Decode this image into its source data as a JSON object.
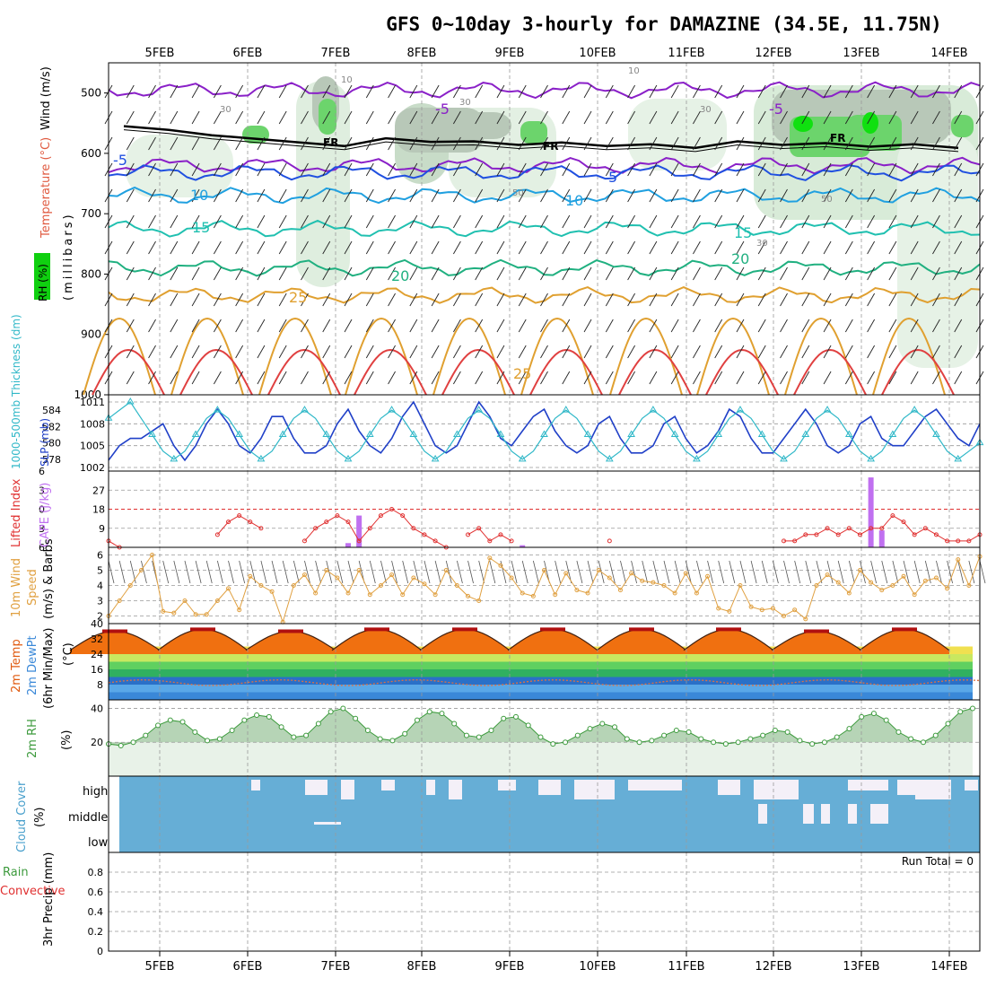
{
  "title": "GFS 0~10day 3-hourly for DAMAZINE (34.5E, 11.75N)",
  "dates": [
    "5FEB",
    "6FEB",
    "7FEB",
    "8FEB",
    "9FEB",
    "10FEB",
    "11FEB",
    "12FEB",
    "13FEB",
    "14FEB"
  ],
  "panel_labels": {
    "upper": {
      "wind": "Wind (m/s)",
      "temp": "Temperature (°C)",
      "rh": "RH (%)",
      "unit": "(millibars)"
    },
    "slp": {
      "thick": "1000-500mb Thickness (dm)",
      "slp": "SLP (mb)"
    },
    "cape": {
      "li": "Lifted Index",
      "cape": "CAPE (J/kg)"
    },
    "wind10": {
      "a": "10m Wind",
      "b": "Speed",
      "c": "(m/s) & Barbs"
    },
    "temp2m": {
      "a": "2m Temp",
      "b": "2m DewPt",
      "c": "(6hr Min/Max)",
      "unit": "(°C)"
    },
    "rh2m": {
      "a": "2m RH",
      "unit": "(%)"
    },
    "cloud": {
      "a": "Cloud Cover",
      "unit": "(%)",
      "high": "high",
      "middle": "middle",
      "low": "low"
    },
    "precip": {
      "a": "Total / Rain",
      "b": "Convective",
      "c": "3hr Precip (mm)",
      "run_total": "Run Total = 0"
    }
  },
  "contour_labels": {
    "fr": [
      "FR",
      "FR",
      "FR"
    ],
    "temps": [
      "-5",
      "-5",
      "-5",
      "5",
      "10",
      "10",
      "15",
      "15",
      "20",
      "20",
      "25",
      "25"
    ],
    "rh": [
      "10",
      "10",
      "30",
      "30",
      "30",
      "50",
      "50",
      "30"
    ]
  },
  "colors": {
    "dewpt": "#3a88d8",
    "temp": "#e05a10",
    "rh": "#3c9a3c",
    "cloud": "#66aed6",
    "cape": "#c070f0",
    "li": "#e03030",
    "slp": "#2040c8",
    "thick": "#30b8c8",
    "windspeed": "#e0a040"
  },
  "chart_data": [
    {
      "type": "contour",
      "name": "upper-air cross section",
      "yaxis": "pressure (mb)",
      "ylim": [
        1000,
        450
      ],
      "yticks": [
        500,
        600,
        700,
        800,
        900,
        1000
      ],
      "freezing_level_mb": [
        555,
        570,
        582,
        575,
        580,
        582,
        585,
        580,
        583,
        585
      ],
      "isotherms": [
        {
          "label": "-5",
          "mb": 495
        },
        {
          "label": "-5",
          "mb": 620
        },
        {
          "label": "5",
          "mb": 632
        },
        {
          "label": "10",
          "mb": 670
        },
        {
          "label": "15",
          "mb": 725
        },
        {
          "label": "20",
          "mb": 790
        },
        {
          "label": "25",
          "mb": 835
        }
      ]
    },
    {
      "type": "line",
      "name": "SLP and thickness",
      "series": [
        {
          "name": "SLP (mb)",
          "ylim": [
            1002,
            1011
          ],
          "yticks": [
            1002,
            1005,
            1008,
            1011
          ],
          "values": [
            1003,
            1005,
            1006,
            1006,
            1007,
            1008,
            1005,
            1003,
            1005,
            1008,
            1010,
            1008,
            1005,
            1004,
            1006,
            1009,
            1009,
            1006,
            1004,
            1004,
            1005,
            1008,
            1010,
            1007,
            1005,
            1004,
            1006,
            1009,
            1011,
            1008,
            1005,
            1004,
            1005,
            1008,
            1011,
            1009,
            1006,
            1005,
            1007,
            1009,
            1010,
            1007,
            1005,
            1004,
            1005,
            1008,
            1009,
            1006,
            1004,
            1004,
            1005,
            1008,
            1009,
            1006,
            1004,
            1005,
            1007,
            1010,
            1009,
            1006,
            1004,
            1004,
            1006,
            1008,
            1010,
            1008,
            1005,
            1004,
            1005,
            1008,
            1009,
            1006,
            1005,
            1005,
            1007,
            1009,
            1010,
            1008,
            1006,
            1005,
            1008
          ]
        },
        {
          "name": "Thickness (dm)",
          "ylim": [
            577,
            585
          ],
          "yticks": [
            578,
            580,
            582,
            584
          ],
          "values": [
            583,
            584,
            585,
            583,
            581,
            579,
            578,
            579,
            581,
            583,
            584,
            583,
            581,
            579,
            578,
            579,
            581,
            583,
            584,
            583,
            581,
            579,
            578,
            579,
            581,
            583,
            584,
            583,
            581,
            579,
            578,
            579,
            581,
            583,
            584,
            583,
            581,
            579,
            578,
            579,
            581,
            583,
            584,
            583,
            581,
            579,
            578,
            579,
            581,
            583,
            584,
            583,
            581,
            579,
            578,
            579,
            581,
            583,
            584,
            583,
            581,
            579,
            578,
            579,
            581,
            583,
            584,
            583,
            581,
            579,
            578,
            579,
            581,
            583,
            584,
            583,
            581,
            579,
            578,
            579,
            580
          ]
        }
      ]
    },
    {
      "type": "line",
      "name": "CAPE and Lifted Index",
      "ylim_li": [
        6,
        -6
      ],
      "yticks_li": [
        6,
        3,
        0,
        -3,
        -6
      ],
      "yticks_cape": [
        9,
        18,
        27
      ],
      "li_values": [
        5,
        6,
        null,
        null,
        null,
        null,
        null,
        null,
        null,
        null,
        4,
        2,
        1,
        2,
        3,
        null,
        null,
        null,
        5,
        3,
        2,
        1,
        2,
        5,
        3,
        1,
        0,
        1,
        3,
        4,
        5,
        6,
        null,
        4,
        3,
        5,
        4,
        5,
        null,
        null,
        null,
        null,
        null,
        null,
        null,
        null,
        5,
        null,
        null,
        null,
        null,
        null,
        null,
        null,
        null,
        null,
        null,
        null,
        null,
        null,
        null,
        null,
        5,
        5,
        4,
        4,
        3,
        4,
        3,
        4,
        3,
        3,
        1,
        2,
        4,
        3,
        4,
        5,
        5,
        5,
        4
      ],
      "cape_bars": [
        {
          "slot": 22,
          "value": 2
        },
        {
          "slot": 23,
          "value": 15
        },
        {
          "slot": 38,
          "value": 1
        },
        {
          "slot": 70,
          "value": 33
        },
        {
          "slot": 71,
          "value": 8
        }
      ]
    },
    {
      "type": "line",
      "name": "10m wind speed",
      "ylim": [
        1.5,
        6.5
      ],
      "yticks": [
        2,
        3,
        4,
        5,
        6
      ],
      "values": [
        2,
        3,
        4,
        5,
        6,
        2.3,
        2.2,
        3,
        2.1,
        2.1,
        3,
        3.8,
        2.4,
        4.6,
        4,
        3.6,
        1.6,
        4,
        4.7,
        3.5,
        5,
        4.5,
        3.5,
        5,
        3.4,
        4,
        4.7,
        3.4,
        4.5,
        4.1,
        3.4,
        5,
        4,
        3.3,
        3,
        5.8,
        5.3,
        4.5,
        3.5,
        3.3,
        5,
        3.4,
        4.8,
        3.7,
        3.5,
        5,
        4.5,
        3.7,
        4.8,
        4.3,
        4.2,
        4,
        3.5,
        4.8,
        3.5,
        4.6,
        2.5,
        2.3,
        4,
        2.6,
        2.4,
        2.5,
        2,
        2.4,
        1.8,
        4,
        4.7,
        4.2,
        3.5,
        5,
        4.2,
        3.7,
        4,
        4.6,
        3.4,
        4.3,
        4.5,
        3.8,
        5.7,
        4,
        5.9
      ]
    },
    {
      "type": "area",
      "name": "2m temperature and dewpoint",
      "ylim": [
        0,
        40
      ],
      "yticks": [
        8,
        16,
        24,
        32,
        40
      ],
      "temp_max": [
        36,
        37,
        36,
        37,
        37,
        37,
        37,
        37,
        36,
        37
      ],
      "temp_min": [
        26,
        26,
        26,
        26,
        26,
        26,
        26,
        26,
        26,
        26
      ],
      "dewpt": [
        8,
        9,
        9,
        8,
        8,
        7,
        6,
        7,
        9,
        10
      ]
    },
    {
      "type": "area",
      "name": "2m RH",
      "ylim": [
        0,
        45
      ],
      "yticks": [
        20,
        40
      ],
      "values": [
        19,
        18,
        20,
        24,
        30,
        33,
        32,
        26,
        21,
        22,
        27,
        33,
        36,
        35,
        29,
        23,
        24,
        31,
        38,
        40,
        34,
        27,
        22,
        21,
        25,
        33,
        38,
        37,
        31,
        24,
        23,
        27,
        34,
        35,
        30,
        23,
        19,
        20,
        24,
        28,
        31,
        29,
        22,
        20,
        21,
        24,
        27,
        26,
        22,
        20,
        19,
        20,
        22,
        24,
        27,
        26,
        21,
        19,
        20,
        23,
        28,
        35,
        37,
        33,
        26,
        22,
        20,
        24,
        31,
        38,
        40
      ]
    },
    {
      "type": "bar",
      "name": "Cloud cover (high/middle/low)",
      "levels": [
        "high",
        "middle",
        "low"
      ]
    },
    {
      "type": "bar",
      "name": "3hr precip",
      "ylim": [
        0,
        1
      ],
      "yticks": [
        0,
        0.2,
        0.4,
        0.6,
        0.8
      ],
      "values": [],
      "run_total": 0
    }
  ]
}
